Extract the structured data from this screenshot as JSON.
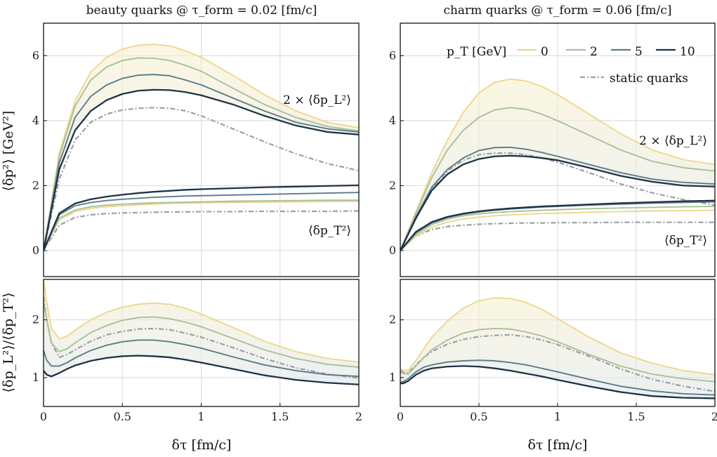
{
  "chart_data": {
    "type": "line",
    "xlabel": "δτ [fm/c]",
    "xlim": [
      0,
      2
    ],
    "xticks": [
      0,
      0.5,
      1,
      1.5,
      2
    ],
    "xtick_labels": [
      "0",
      "0.5",
      "1",
      "1.5",
      "2"
    ],
    "top_ylabel": "⟨δp²⟩ [GeV²]",
    "bottom_ylabel": "⟨δp_L²⟩/⟨δp_T²⟩",
    "top_ylim": [
      -0.8,
      7
    ],
    "top_yticks": [
      0,
      2,
      4,
      6
    ],
    "bottom_ylim": [
      0.5,
      2.7
    ],
    "bottom_yticks": [
      1,
      2
    ],
    "legend": {
      "title": "p_T [GeV]",
      "entries": [
        "0",
        "2",
        "5",
        "10"
      ],
      "colors": [
        "#eed78a",
        "#a9c09a",
        "#5a7e86",
        "#1e3347"
      ],
      "static_label": "static quarks",
      "static_color": "#9aa0a8",
      "placement": "top-right of right panel"
    },
    "panels": [
      {
        "title": "beauty quarks @ τ_form = 0.02 [fm/c]",
        "annotation_L": "2 × ⟨δp_L²⟩",
        "annotation_T": "⟨δp_T²⟩",
        "top": {
          "x": [
            0,
            0.1,
            0.2,
            0.3,
            0.4,
            0.5,
            0.6,
            0.7,
            0.8,
            0.9,
            1.0,
            1.2,
            1.4,
            1.6,
            1.8,
            2.0
          ],
          "series_L": [
            {
              "name": "0",
              "values": [
                0,
                3.0,
                4.6,
                5.5,
                5.95,
                6.2,
                6.32,
                6.35,
                6.3,
                6.15,
                5.95,
                5.4,
                4.8,
                4.3,
                3.95,
                3.78
              ]
            },
            {
              "name": "2",
              "values": [
                0,
                2.9,
                4.45,
                5.25,
                5.65,
                5.85,
                5.93,
                5.92,
                5.85,
                5.7,
                5.52,
                5.0,
                4.5,
                4.1,
                3.82,
                3.68
              ]
            },
            {
              "name": "5",
              "values": [
                0,
                2.7,
                4.1,
                4.75,
                5.1,
                5.3,
                5.4,
                5.42,
                5.38,
                5.25,
                5.1,
                4.7,
                4.3,
                3.95,
                3.75,
                3.65
              ]
            },
            {
              "name": "10",
              "values": [
                0,
                2.5,
                3.7,
                4.3,
                4.63,
                4.82,
                4.92,
                4.95,
                4.94,
                4.88,
                4.78,
                4.5,
                4.15,
                3.85,
                3.65,
                3.57
              ]
            },
            {
              "name": "static quarks",
              "values": [
                0,
                2.2,
                3.4,
                3.95,
                4.2,
                4.33,
                4.38,
                4.4,
                4.38,
                4.3,
                4.15,
                3.75,
                3.35,
                2.98,
                2.68,
                2.46
              ]
            }
          ],
          "series_T": [
            {
              "name": "0",
              "values": [
                0,
                0.95,
                1.2,
                1.3,
                1.35,
                1.38,
                1.41,
                1.43,
                1.45,
                1.46,
                1.47,
                1.48,
                1.49,
                1.5,
                1.51,
                1.52
              ]
            },
            {
              "name": "2",
              "values": [
                0,
                1.0,
                1.25,
                1.35,
                1.4,
                1.43,
                1.45,
                1.47,
                1.48,
                1.49,
                1.5,
                1.52,
                1.53,
                1.54,
                1.55,
                1.55
              ]
            },
            {
              "name": "5",
              "values": [
                0,
                1.1,
                1.38,
                1.48,
                1.54,
                1.58,
                1.61,
                1.64,
                1.66,
                1.68,
                1.69,
                1.71,
                1.73,
                1.75,
                1.77,
                1.79
              ]
            },
            {
              "name": "10",
              "values": [
                0,
                1.15,
                1.45,
                1.58,
                1.66,
                1.72,
                1.77,
                1.81,
                1.84,
                1.87,
                1.89,
                1.92,
                1.95,
                1.97,
                1.99,
                2.01
              ]
            },
            {
              "name": "static quarks",
              "values": [
                0,
                0.78,
                1.02,
                1.1,
                1.14,
                1.16,
                1.17,
                1.18,
                1.19,
                1.19,
                1.2,
                1.2,
                1.21,
                1.21,
                1.21,
                1.22
              ]
            }
          ]
        },
        "bottom": {
          "x": [
            0,
            0.02,
            0.05,
            0.1,
            0.15,
            0.2,
            0.3,
            0.4,
            0.5,
            0.6,
            0.7,
            0.8,
            0.9,
            1.0,
            1.2,
            1.4,
            1.6,
            1.8,
            2.0
          ],
          "series": [
            {
              "name": "0",
              "values": [
                2.7,
                2.3,
                1.85,
                1.67,
                1.72,
                1.82,
                2.0,
                2.13,
                2.22,
                2.27,
                2.29,
                2.27,
                2.2,
                2.1,
                1.87,
                1.63,
                1.45,
                1.33,
                1.27
              ]
            },
            {
              "name": "2",
              "values": [
                2.3,
                2.0,
                1.6,
                1.45,
                1.5,
                1.6,
                1.78,
                1.9,
                1.99,
                2.04,
                2.05,
                2.02,
                1.96,
                1.88,
                1.68,
                1.48,
                1.33,
                1.23,
                1.18
              ]
            },
            {
              "name": "5",
              "values": [
                1.47,
                1.3,
                1.2,
                1.2,
                1.26,
                1.34,
                1.47,
                1.56,
                1.62,
                1.65,
                1.65,
                1.62,
                1.57,
                1.51,
                1.36,
                1.22,
                1.12,
                1.05,
                1.02
              ]
            },
            {
              "name": "10",
              "values": [
                1.12,
                1.05,
                1.02,
                1.08,
                1.15,
                1.21,
                1.29,
                1.34,
                1.37,
                1.38,
                1.37,
                1.35,
                1.31,
                1.26,
                1.15,
                1.04,
                0.96,
                0.91,
                0.88
              ]
            },
            {
              "name": "static quarks",
              "values": [
                2.4,
                2.0,
                1.6,
                1.35,
                1.4,
                1.48,
                1.63,
                1.74,
                1.8,
                1.84,
                1.85,
                1.83,
                1.77,
                1.7,
                1.52,
                1.33,
                1.17,
                1.06,
                0.99
              ]
            }
          ]
        }
      },
      {
        "title": "charm quarks @ τ_form = 0.06 [fm/c]",
        "annotation_L": "2 × ⟨δp_L²⟩",
        "annotation_T": "⟨δp_T²⟩",
        "top": {
          "x": [
            0,
            0.1,
            0.2,
            0.3,
            0.4,
            0.5,
            0.6,
            0.7,
            0.8,
            0.9,
            1.0,
            1.2,
            1.4,
            1.6,
            1.8,
            2.0
          ],
          "series_L": [
            {
              "name": "0",
              "values": [
                0,
                1.2,
                2.4,
                3.4,
                4.25,
                4.85,
                5.18,
                5.28,
                5.22,
                5.05,
                4.8,
                4.2,
                3.6,
                3.1,
                2.8,
                2.65
              ]
            },
            {
              "name": "2",
              "values": [
                0,
                1.15,
                2.25,
                3.1,
                3.7,
                4.1,
                4.33,
                4.4,
                4.35,
                4.2,
                4.0,
                3.55,
                3.1,
                2.75,
                2.55,
                2.45
              ]
            },
            {
              "name": "5",
              "values": [
                0,
                1.05,
                1.95,
                2.5,
                2.85,
                3.08,
                3.17,
                3.18,
                3.12,
                3.02,
                2.9,
                2.65,
                2.4,
                2.2,
                2.1,
                2.05
              ]
            },
            {
              "name": "10",
              "values": [
                0,
                1.0,
                1.85,
                2.35,
                2.65,
                2.82,
                2.9,
                2.92,
                2.9,
                2.85,
                2.78,
                2.55,
                2.3,
                2.12,
                2.0,
                1.97
              ]
            },
            {
              "name": "static quarks",
              "values": [
                0,
                1.02,
                1.9,
                2.45,
                2.78,
                2.95,
                3.0,
                3.0,
                2.95,
                2.85,
                2.72,
                2.4,
                2.05,
                1.78,
                1.57,
                1.4
              ]
            }
          ],
          "series_T": [
            {
              "name": "0",
              "values": [
                0,
                0.45,
                0.72,
                0.88,
                0.97,
                1.03,
                1.07,
                1.1,
                1.12,
                1.14,
                1.15,
                1.18,
                1.2,
                1.22,
                1.23,
                1.24
              ]
            },
            {
              "name": "2",
              "values": [
                0,
                0.5,
                0.8,
                0.97,
                1.07,
                1.13,
                1.17,
                1.2,
                1.22,
                1.24,
                1.26,
                1.29,
                1.31,
                1.33,
                1.35,
                1.36
              ]
            },
            {
              "name": "5",
              "values": [
                0,
                0.55,
                0.85,
                1.02,
                1.12,
                1.19,
                1.24,
                1.28,
                1.31,
                1.34,
                1.36,
                1.4,
                1.43,
                1.46,
                1.48,
                1.5
              ]
            },
            {
              "name": "10",
              "values": [
                0,
                0.58,
                0.88,
                1.04,
                1.14,
                1.21,
                1.26,
                1.3,
                1.33,
                1.36,
                1.38,
                1.42,
                1.46,
                1.49,
                1.52,
                1.54
              ]
            },
            {
              "name": "static quarks",
              "values": [
                0,
                0.45,
                0.65,
                0.74,
                0.78,
                0.81,
                0.83,
                0.84,
                0.85,
                0.85,
                0.86,
                0.86,
                0.87,
                0.87,
                0.87,
                0.87
              ]
            }
          ]
        },
        "bottom": {
          "x": [
            0,
            0.02,
            0.05,
            0.1,
            0.15,
            0.2,
            0.3,
            0.4,
            0.5,
            0.6,
            0.7,
            0.8,
            0.9,
            1.0,
            1.2,
            1.4,
            1.6,
            1.8,
            2.0
          ],
          "series": [
            {
              "name": "0",
              "values": [
                1.15,
                1.13,
                1.12,
                1.3,
                1.5,
                1.7,
                1.98,
                2.2,
                2.33,
                2.38,
                2.37,
                2.3,
                2.18,
                2.02,
                1.7,
                1.43,
                1.25,
                1.12,
                1.05
              ]
            },
            {
              "name": "2",
              "values": [
                1.1,
                1.07,
                1.06,
                1.2,
                1.35,
                1.48,
                1.65,
                1.77,
                1.83,
                1.85,
                1.84,
                1.79,
                1.72,
                1.62,
                1.4,
                1.2,
                1.06,
                0.98,
                0.93
              ]
            },
            {
              "name": "5",
              "values": [
                0.92,
                0.93,
                0.98,
                1.1,
                1.18,
                1.22,
                1.27,
                1.29,
                1.3,
                1.29,
                1.26,
                1.22,
                1.16,
                1.1,
                0.97,
                0.85,
                0.77,
                0.72,
                0.7
              ]
            },
            {
              "name": "10",
              "values": [
                0.9,
                0.9,
                0.94,
                1.05,
                1.12,
                1.16,
                1.19,
                1.2,
                1.19,
                1.16,
                1.12,
                1.07,
                1.02,
                0.96,
                0.85,
                0.75,
                0.68,
                0.65,
                0.64
              ]
            },
            {
              "name": "static quarks",
              "values": [
                1.12,
                1.09,
                1.08,
                1.22,
                1.35,
                1.45,
                1.58,
                1.66,
                1.71,
                1.73,
                1.74,
                1.71,
                1.65,
                1.57,
                1.37,
                1.15,
                0.97,
                0.85,
                0.76
              ]
            }
          ]
        }
      }
    ]
  }
}
